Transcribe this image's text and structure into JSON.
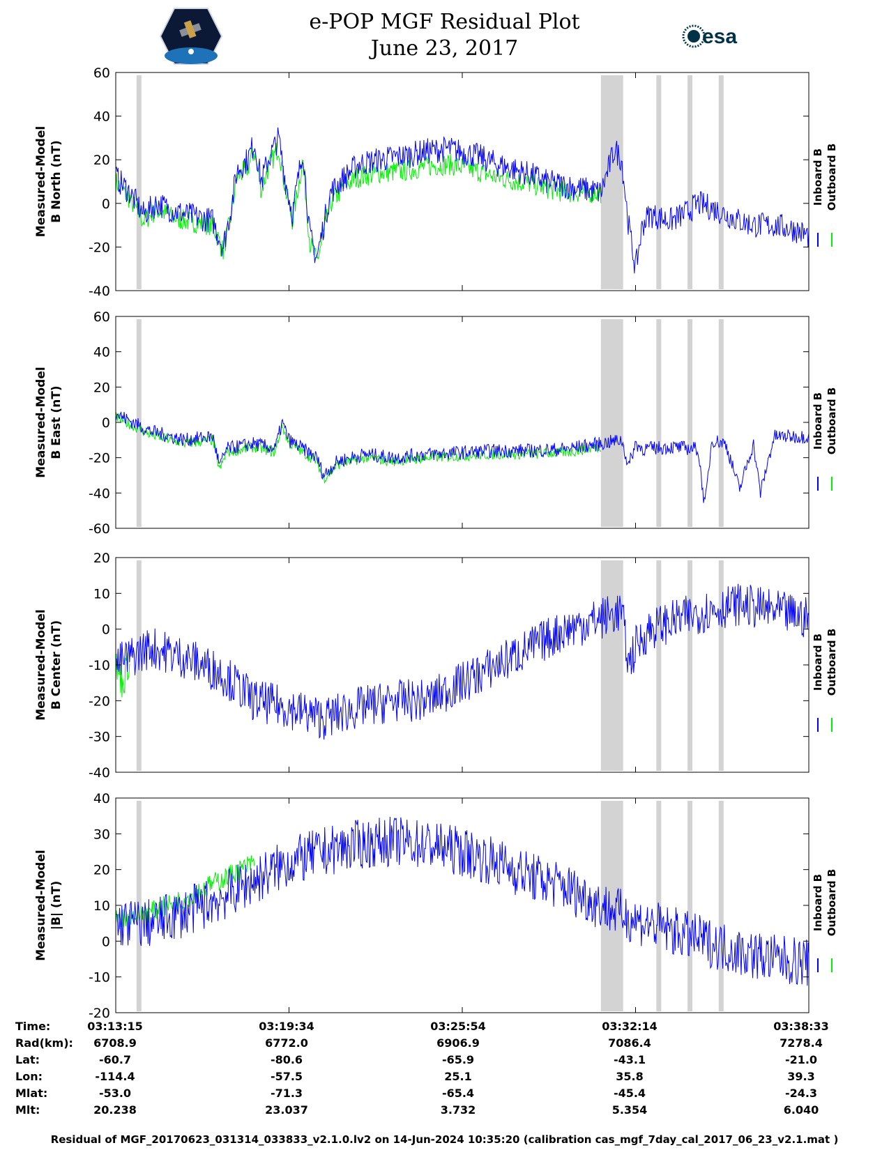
{
  "title": "e-POP MGF Residual Plot",
  "subtitle": "June 23, 2017",
  "logos": {
    "left": "cassiope-mission-logo",
    "right": "esa-logo",
    "right_text": "esa"
  },
  "colors": {
    "inboard": "#0000ff",
    "outboard": "#00ee00",
    "gap": "#d3d3d3",
    "axis": "#000000"
  },
  "chart_data": [
    {
      "type": "line",
      "ylabel_line1": "Measured-Model",
      "ylabel_line2": "B North (nT)",
      "ylim": [
        -40,
        60
      ],
      "yticks": [
        -40,
        -20,
        0,
        20,
        40,
        60
      ],
      "legend": [
        "Inboard B",
        "Outboard B"
      ],
      "series": [
        {
          "name": "Inboard B",
          "color": "#0000ff",
          "x": [
            0,
            0.02,
            0.04,
            0.06,
            0.08,
            0.1,
            0.14,
            0.155,
            0.165,
            0.175,
            0.19,
            0.2,
            0.21,
            0.22,
            0.235,
            0.245,
            0.255,
            0.27,
            0.28,
            0.29,
            0.31,
            0.33,
            0.35,
            0.38,
            0.42,
            0.45,
            0.48,
            0.52,
            0.55,
            0.58,
            0.6,
            0.62,
            0.65,
            0.7,
            0.72,
            0.73,
            0.74,
            0.75,
            0.76,
            0.77,
            0.8,
            0.82,
            0.84,
            0.86,
            0.88,
            0.9,
            0.92,
            0.95,
            0.98,
            1.0
          ],
          "y": [
            12,
            5,
            -5,
            0,
            -3,
            -5,
            -8,
            -20,
            -5,
            15,
            20,
            28,
            10,
            20,
            30,
            10,
            -5,
            25,
            -15,
            -25,
            5,
            12,
            18,
            20,
            22,
            24,
            25,
            22,
            18,
            15,
            13,
            10,
            8,
            5,
            25,
            20,
            -10,
            -30,
            -10,
            -5,
            -8,
            -5,
            0,
            -2,
            -5,
            -8,
            -10,
            -10,
            -12,
            -15
          ],
          "amp": 6
        },
        {
          "name": "Outboard B",
          "color": "#00ee00",
          "x": [
            0,
            0.02,
            0.04,
            0.06,
            0.08,
            0.1,
            0.14,
            0.155,
            0.165,
            0.175,
            0.19,
            0.2,
            0.21,
            0.22,
            0.235,
            0.245,
            0.255,
            0.27,
            0.28,
            0.29,
            0.31,
            0.33,
            0.35,
            0.38,
            0.42,
            0.45,
            0.48,
            0.52,
            0.55,
            0.58,
            0.6,
            0.62,
            0.65,
            0.7
          ],
          "y": [
            10,
            2,
            -8,
            -3,
            -6,
            -8,
            -10,
            -22,
            -8,
            12,
            16,
            24,
            6,
            16,
            26,
            6,
            -8,
            20,
            -18,
            -27,
            0,
            8,
            12,
            14,
            15,
            17,
            18,
            15,
            12,
            10,
            9,
            7,
            5,
            5
          ],
          "amp": 5
        }
      ]
    },
    {
      "type": "line",
      "ylabel_line1": "Measured-Model",
      "ylabel_line2": "B East (nT)",
      "ylim": [
        -60,
        60
      ],
      "yticks": [
        -60,
        -40,
        -20,
        0,
        20,
        40,
        60
      ],
      "legend": [
        "Inboard B",
        "Outboard B"
      ],
      "series": [
        {
          "name": "Inboard B",
          "color": "#0000ff",
          "x": [
            0,
            0.05,
            0.1,
            0.14,
            0.15,
            0.16,
            0.2,
            0.23,
            0.24,
            0.25,
            0.29,
            0.3,
            0.32,
            0.36,
            0.4,
            0.45,
            0.5,
            0.55,
            0.6,
            0.65,
            0.7,
            0.73,
            0.74,
            0.75,
            0.76,
            0.8,
            0.84,
            0.85,
            0.86,
            0.88,
            0.9,
            0.92,
            0.93,
            0.95,
            1.0
          ],
          "y": [
            5,
            -5,
            -10,
            -8,
            -25,
            -15,
            -12,
            -15,
            0,
            -10,
            -20,
            -30,
            -22,
            -18,
            -20,
            -18,
            -17,
            -16,
            -16,
            -15,
            -12,
            -10,
            -25,
            -12,
            -15,
            -14,
            -15,
            -48,
            -10,
            -12,
            -38,
            -12,
            -40,
            -8,
            -8
          ],
          "amp": 4
        },
        {
          "name": "Outboard B",
          "color": "#00ee00",
          "x": [
            0,
            0.05,
            0.1,
            0.14,
            0.15,
            0.16,
            0.2,
            0.23,
            0.24,
            0.25,
            0.29,
            0.3,
            0.32,
            0.36,
            0.4,
            0.45,
            0.5,
            0.55,
            0.6,
            0.65,
            0.7
          ],
          "y": [
            3,
            -7,
            -12,
            -10,
            -27,
            -17,
            -14,
            -17,
            -2,
            -12,
            -22,
            -32,
            -24,
            -20,
            -22,
            -20,
            -19,
            -18,
            -18,
            -17,
            -14
          ],
          "amp": 3
        }
      ]
    },
    {
      "type": "line",
      "ylabel_line1": "Measured-Model",
      "ylabel_line2": "B Center (nT)",
      "ylim": [
        -40,
        20
      ],
      "yticks": [
        -40,
        -30,
        -20,
        -10,
        0,
        10,
        20
      ],
      "legend": [
        "Inboard B",
        "Outboard B"
      ],
      "series": [
        {
          "name": "Inboard B",
          "color": "#0000ff",
          "x": [
            0,
            0.02,
            0.05,
            0.1,
            0.15,
            0.17,
            0.2,
            0.25,
            0.3,
            0.35,
            0.4,
            0.45,
            0.5,
            0.55,
            0.6,
            0.65,
            0.7,
            0.73,
            0.74,
            0.75,
            0.77,
            0.8,
            0.85,
            0.9,
            0.95,
            1.0
          ],
          "y": [
            -10,
            -8,
            -5,
            -8,
            -12,
            -15,
            -20,
            -22,
            -25,
            -22,
            -20,
            -20,
            -15,
            -10,
            -5,
            0,
            3,
            5,
            -10,
            -5,
            0,
            2,
            5,
            7,
            5,
            3
          ],
          "amp": 6
        },
        {
          "name": "Outboard B",
          "color": "#00ee00",
          "x": [
            0,
            0.01,
            0.02
          ],
          "y": [
            -10,
            -15,
            -8
          ],
          "amp": 5
        }
      ]
    },
    {
      "type": "line",
      "ylabel_line1": "Measured-Model",
      "ylabel_line2": "|B| (nT)",
      "ylim": [
        -20,
        40
      ],
      "yticks": [
        -20,
        -10,
        0,
        10,
        20,
        30,
        40
      ],
      "legend": [
        "Inboard B",
        "Outboard B"
      ],
      "series": [
        {
          "name": "Inboard B",
          "color": "#0000ff",
          "x": [
            0,
            0.05,
            0.1,
            0.15,
            0.2,
            0.25,
            0.3,
            0.35,
            0.4,
            0.45,
            0.5,
            0.55,
            0.6,
            0.65,
            0.7,
            0.75,
            0.8,
            0.85,
            0.9,
            0.95,
            1.0
          ],
          "y": [
            5,
            5,
            8,
            12,
            17,
            22,
            25,
            27,
            28,
            27,
            25,
            22,
            18,
            15,
            10,
            6,
            3,
            0,
            -3,
            -5,
            -6
          ],
          "amp": 7
        },
        {
          "name": "Outboard B",
          "color": "#00ee00",
          "x": [
            0,
            0.02,
            0.05,
            0.1,
            0.15,
            0.2
          ],
          "y": [
            6,
            7,
            8,
            12,
            17,
            22
          ],
          "amp": 3
        }
      ]
    }
  ],
  "gap_bands": [
    0.03,
    0.7,
    0.705,
    0.71,
    0.715,
    0.72,
    0.725,
    0.78,
    0.825,
    0.87
  ],
  "info_table": {
    "labels": [
      "Time:",
      "Rad(km):",
      "Lat:",
      "Lon:",
      "Mlat:",
      "Mlt:"
    ],
    "columns": [
      {
        "Time": "03:13:15",
        "Rad": "6708.9",
        "Lat": "-60.7",
        "Lon": "-114.4",
        "Mlat": "-53.0",
        "Mlt": "20.238"
      },
      {
        "Time": "03:19:34",
        "Rad": "6772.0",
        "Lat": "-80.6",
        "Lon": "-57.5",
        "Mlat": "-71.3",
        "Mlt": "23.037"
      },
      {
        "Time": "03:25:54",
        "Rad": "6906.9",
        "Lat": "-65.9",
        "Lon": "25.1",
        "Mlat": "-65.4",
        "Mlt": "3.732"
      },
      {
        "Time": "03:32:14",
        "Rad": "7086.4",
        "Lat": "-43.1",
        "Lon": "35.8",
        "Mlat": "-45.4",
        "Mlt": "5.354"
      },
      {
        "Time": "03:38:33",
        "Rad": "7278.4",
        "Lat": "-21.0",
        "Lon": "39.3",
        "Mlat": "-24.3",
        "Mlt": "6.040"
      }
    ]
  },
  "footer": "Residual of MGF_20170623_031314_033833_v2.1.0.lv2 on 14-Jun-2024 10:35:20 (calibration cas_mgf_7day_cal_2017_06_23_v2.1.mat )"
}
